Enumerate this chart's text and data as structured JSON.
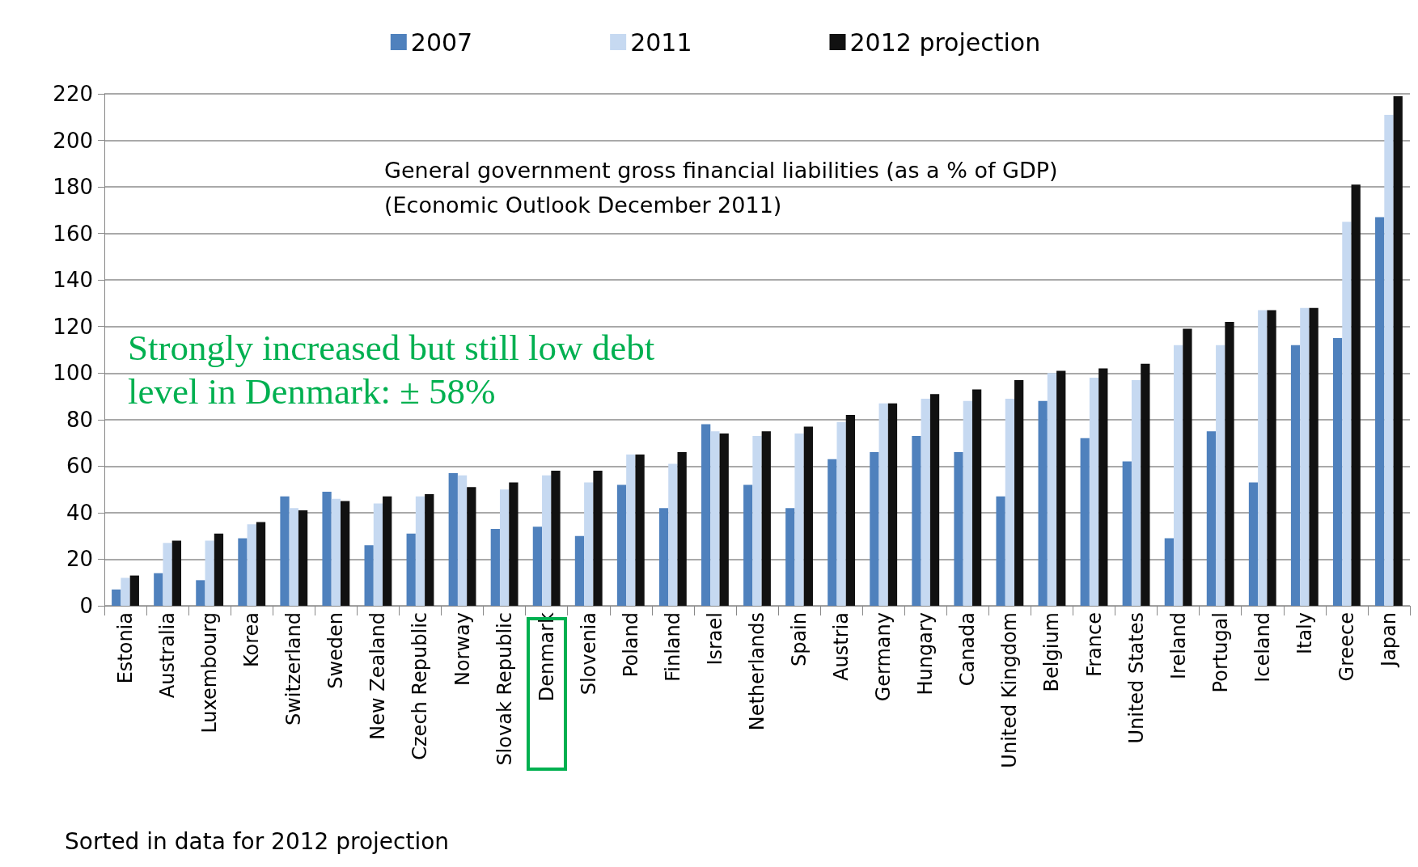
{
  "chart_data": {
    "type": "bar",
    "categories": [
      "Estonia",
      "Australia",
      "Luxembourg",
      "Korea",
      "Switzerland",
      "Sweden",
      "New Zealand",
      "Czech Republic",
      "Norway",
      "Slovak Republic",
      "Denmark",
      "Slovenia",
      "Poland",
      "Finland",
      "Israel",
      "Netherlands",
      "Spain",
      "Austria",
      "Germany",
      "Hungary",
      "Canada",
      "United Kingdom",
      "Belgium",
      "France",
      "United States",
      "Ireland",
      "Portugal",
      "Iceland",
      "Italy",
      "Greece",
      "Japan"
    ],
    "series": [
      {
        "name": "2007",
        "color": "#4f81bd",
        "values": [
          7,
          14,
          11,
          29,
          47,
          49,
          26,
          31,
          57,
          33,
          34,
          30,
          52,
          42,
          78,
          52,
          42,
          63,
          66,
          73,
          66,
          47,
          88,
          72,
          62,
          29,
          75,
          53,
          112,
          115,
          167
        ]
      },
      {
        "name": "2011",
        "color": "#c6d9f1",
        "values": [
          12,
          27,
          28,
          35,
          42,
          46,
          44,
          47,
          56,
          50,
          56,
          53,
          65,
          61,
          75,
          73,
          74,
          79,
          87,
          89,
          88,
          89,
          100,
          98,
          97,
          112,
          112,
          127,
          128,
          165,
          211
        ]
      },
      {
        "name": "2012 projection",
        "color": "#111111",
        "values": [
          13,
          28,
          31,
          36,
          41,
          45,
          47,
          48,
          51,
          53,
          58,
          58,
          65,
          66,
          74,
          75,
          77,
          82,
          87,
          91,
          93,
          97,
          101,
          102,
          104,
          119,
          122,
          127,
          128,
          181,
          219
        ]
      }
    ],
    "ylim": [
      0,
      220
    ],
    "yticks": [
      0,
      20,
      40,
      60,
      80,
      100,
      120,
      140,
      160,
      180,
      200,
      220
    ],
    "grid": "y",
    "legend": "top",
    "annotations": [
      "General government gross financial liabilities (as a % of GDP)",
      "(Economic Outlook December 2011)",
      "Strongly increased but still low debt\nlevel in Denmark: ± 58%",
      "Sorted in data for 2012 projection"
    ]
  }
}
